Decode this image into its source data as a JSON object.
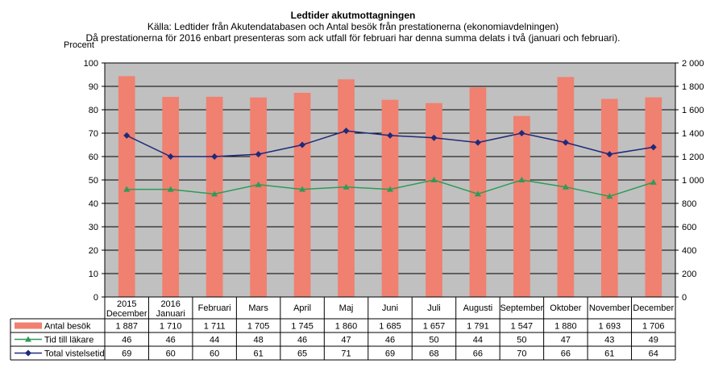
{
  "chart_data": {
    "type": "bar",
    "title": "Ledtider akutmottagningen",
    "subtitle_1": "Källa: Ledtider från Akutendatabasen och Antal besök från prestationerna (ekonomiavdelningen)",
    "subtitle_2": "Då prestationerna för 2016 enbart presenteras som ack utfall för februari har denna summa delats i två (januari och februari).",
    "ylabel": "Procent",
    "ylim": [
      0,
      100
    ],
    "y_ticks": [
      "0",
      "10",
      "20",
      "30",
      "40",
      "50",
      "60",
      "70",
      "80",
      "90",
      "100"
    ],
    "y2lim": [
      0,
      2000
    ],
    "y2_ticks": [
      "0",
      "200",
      "400",
      "600",
      "800",
      "1 000",
      "1 200",
      "1 400",
      "1 600",
      "1 800",
      "2 000"
    ],
    "grid": true,
    "categories": [
      [
        "2015",
        "December"
      ],
      [
        "2016",
        "Januari"
      ],
      [
        "Februari"
      ],
      [
        "Mars"
      ],
      [
        "April"
      ],
      [
        "Maj"
      ],
      [
        "Juni"
      ],
      [
        "Juli"
      ],
      [
        "Augusti"
      ],
      [
        "September"
      ],
      [
        "Oktober"
      ],
      [
        "November"
      ],
      [
        "December"
      ]
    ],
    "series": [
      {
        "name": "Antal besök",
        "kind": "bar",
        "axis": "right",
        "color": "#F08070",
        "values": [
          1887,
          1710,
          1711,
          1705,
          1745,
          1860,
          1685,
          1657,
          1791,
          1547,
          1880,
          1693,
          1706
        ],
        "labels": [
          "1 887",
          "1 710",
          "1 711",
          "1 705",
          "1 745",
          "1 860",
          "1 685",
          "1 657",
          "1 791",
          "1 547",
          "1 880",
          "1 693",
          "1 706"
        ]
      },
      {
        "name": "Tid till läkare",
        "kind": "line",
        "axis": "left",
        "color": "#2E9B57",
        "marker": "triangle",
        "values": [
          46,
          46,
          44,
          48,
          46,
          47,
          46,
          50,
          44,
          50,
          47,
          43,
          49
        ]
      },
      {
        "name": "Total vistelsetid",
        "kind": "line",
        "axis": "left",
        "color": "#1F2A7A",
        "marker": "diamond",
        "values": [
          69,
          60,
          60,
          61,
          65,
          71,
          69,
          68,
          66,
          70,
          66,
          61,
          64
        ]
      }
    ]
  }
}
